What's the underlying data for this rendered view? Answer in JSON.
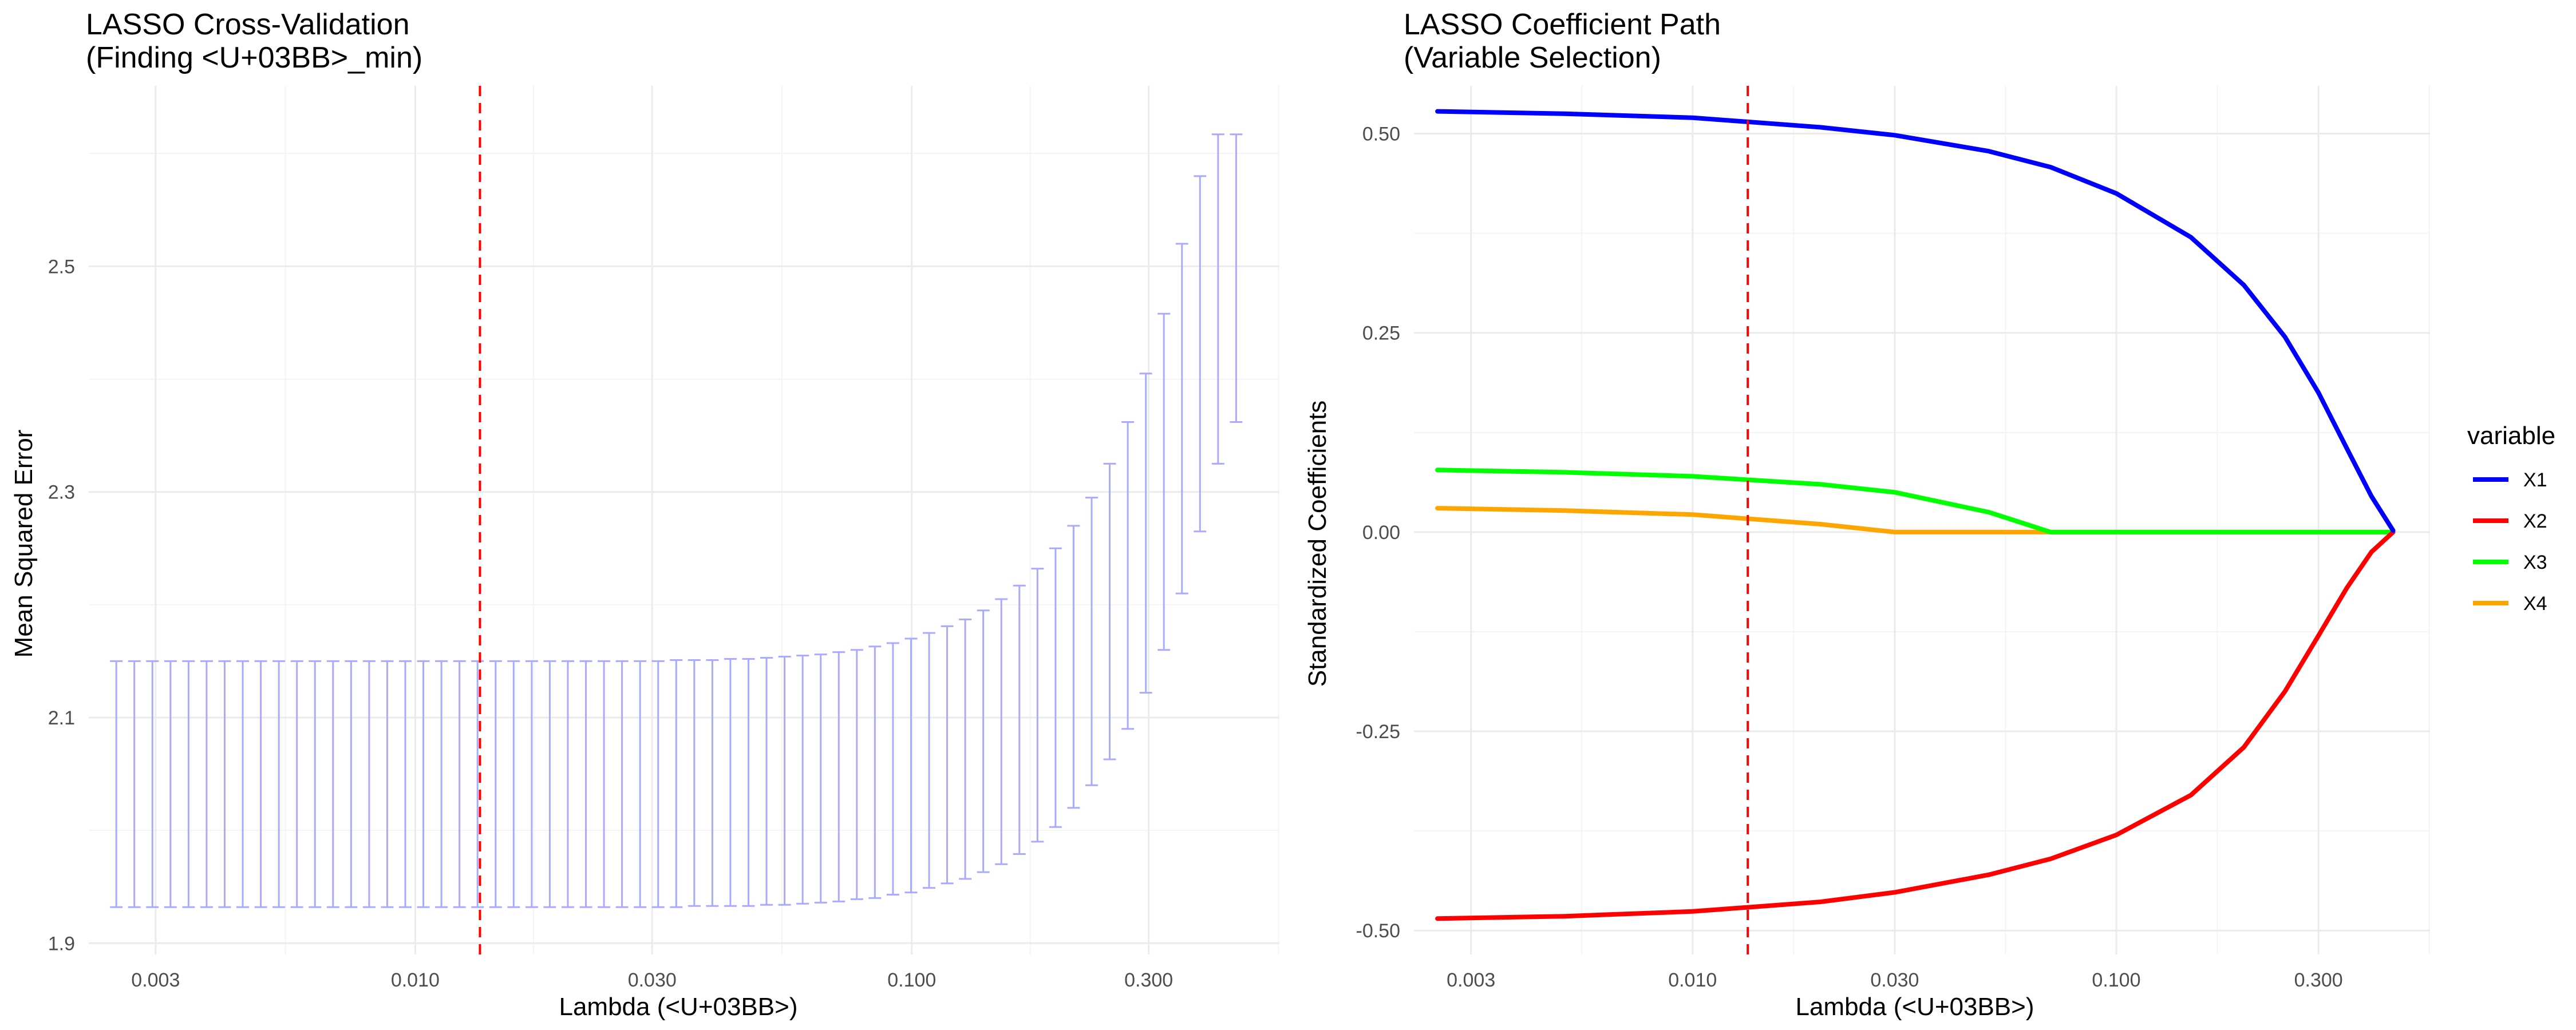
{
  "chart_data": [
    {
      "type": "errorbar",
      "title": "LASSO Cross-Validation",
      "subtitle": "(Finding <U+03BB>_min)",
      "xlabel": "Lambda (<U+03BB>)",
      "ylabel": "Mean Squared Error",
      "x_scale": "log10",
      "xlim": [
        0.0022,
        0.55
      ],
      "ylim": [
        1.89,
        2.66
      ],
      "x_ticks": [
        0.003,
        0.01,
        0.03,
        0.1,
        0.3
      ],
      "x_tick_labels": [
        "0.003",
        "0.010",
        "0.030",
        "0.100",
        "0.300"
      ],
      "y_ticks": [
        1.9,
        2.1,
        2.3,
        2.5
      ],
      "y_tick_labels": [
        "1.9",
        "2.1",
        "2.3",
        "2.5"
      ],
      "grid": true,
      "lambda_min": 0.0135,
      "vline_color": "#ff0000",
      "bar_color": "#aaaaff",
      "lambda_range": [
        0.0025,
        0.45
      ],
      "error_bars": {
        "lower": [
          1.932,
          1.932,
          1.932,
          1.932,
          1.932,
          1.932,
          1.932,
          1.932,
          1.932,
          1.932,
          1.932,
          1.932,
          1.932,
          1.932,
          1.932,
          1.932,
          1.932,
          1.932,
          1.932,
          1.932,
          1.932,
          1.932,
          1.932,
          1.932,
          1.932,
          1.932,
          1.932,
          1.932,
          1.932,
          1.932,
          1.932,
          1.932,
          1.933,
          1.933,
          1.933,
          1.933,
          1.934,
          1.934,
          1.935,
          1.936,
          1.937,
          1.939,
          1.94,
          1.943,
          1.945,
          1.949,
          1.953,
          1.957,
          1.963,
          1.97,
          1.979,
          1.99,
          2.003,
          2.02,
          2.04,
          2.063,
          2.09,
          2.122,
          2.16,
          2.21,
          2.265,
          2.325,
          2.362
        ],
        "upper": [
          2.15,
          2.15,
          2.15,
          2.15,
          2.15,
          2.15,
          2.15,
          2.15,
          2.15,
          2.15,
          2.15,
          2.15,
          2.15,
          2.15,
          2.15,
          2.15,
          2.15,
          2.15,
          2.15,
          2.15,
          2.15,
          2.15,
          2.15,
          2.15,
          2.15,
          2.15,
          2.15,
          2.15,
          2.15,
          2.15,
          2.15,
          2.151,
          2.151,
          2.151,
          2.152,
          2.152,
          2.153,
          2.154,
          2.155,
          2.156,
          2.158,
          2.16,
          2.163,
          2.166,
          2.17,
          2.175,
          2.181,
          2.187,
          2.195,
          2.205,
          2.217,
          2.232,
          2.25,
          2.27,
          2.295,
          2.325,
          2.362,
          2.405,
          2.458,
          2.52,
          2.58,
          2.617,
          2.617
        ]
      }
    },
    {
      "type": "line",
      "title": "LASSO Coefficient Path",
      "subtitle": "(Variable Selection)",
      "xlabel": "Lambda (<U+03BB>)",
      "ylabel": "Standardized Coefficients",
      "x_scale": "log10",
      "xlim": [
        0.0022,
        0.55
      ],
      "ylim": [
        -0.53,
        0.56
      ],
      "x_ticks": [
        0.003,
        0.01,
        0.03,
        0.1,
        0.3
      ],
      "x_tick_labels": [
        "0.003",
        "0.010",
        "0.030",
        "0.100",
        "0.300"
      ],
      "y_ticks": [
        -0.5,
        -0.25,
        0,
        0.25,
        0.5
      ],
      "y_tick_labels": [
        "-0.50",
        "-0.25",
        "0.00",
        "0.25",
        "0.50"
      ],
      "grid": true,
      "lambda_min": 0.0135,
      "vline_color": "#ff0000",
      "legend_title": "variable",
      "legend_position": "right",
      "x": [
        0.0025,
        0.005,
        0.01,
        0.02,
        0.03,
        0.05,
        0.07,
        0.1,
        0.15,
        0.2,
        0.25,
        0.3,
        0.35,
        0.4,
        0.45
      ],
      "series": [
        {
          "name": "X1",
          "color": "#0000ff",
          "values": [
            0.528,
            0.525,
            0.52,
            0.508,
            0.498,
            0.478,
            0.458,
            0.425,
            0.37,
            0.31,
            0.245,
            0.175,
            0.105,
            0.045,
            0.002
          ]
        },
        {
          "name": "X2",
          "color": "#ff0000",
          "values": [
            -0.485,
            -0.482,
            -0.476,
            -0.464,
            -0.452,
            -0.43,
            -0.41,
            -0.38,
            -0.33,
            -0.27,
            -0.2,
            -0.13,
            -0.07,
            -0.025,
            0.0
          ]
        },
        {
          "name": "X3",
          "color": "#00ff00",
          "values": [
            0.078,
            0.075,
            0.07,
            0.06,
            0.05,
            0.025,
            0.0,
            0.0,
            0.0,
            0.0,
            0.0,
            0.0,
            0.0,
            0.0,
            0.0
          ]
        },
        {
          "name": "X4",
          "color": "#ffa500",
          "values": [
            0.03,
            0.027,
            0.022,
            0.01,
            0.0,
            0.0,
            0.0,
            0.0,
            0.0,
            0.0,
            0.0,
            0.0,
            0.0,
            0.0,
            0.0
          ]
        }
      ]
    }
  ]
}
